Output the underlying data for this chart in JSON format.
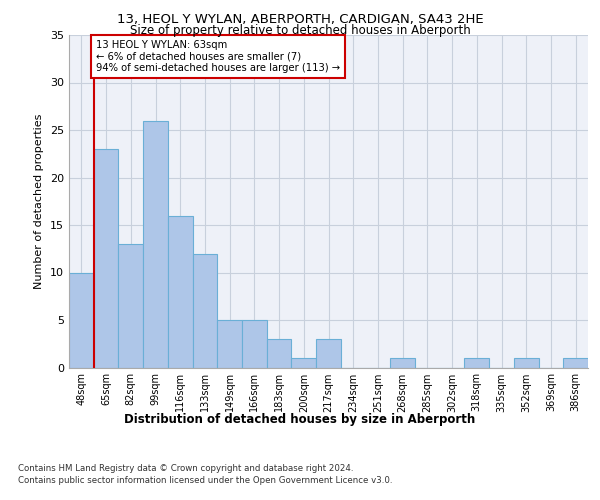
{
  "title1": "13, HEOL Y WYLAN, ABERPORTH, CARDIGAN, SA43 2HE",
  "title2": "Size of property relative to detached houses in Aberporth",
  "xlabel": "Distribution of detached houses by size in Aberporth",
  "ylabel": "Number of detached properties",
  "categories": [
    "48sqm",
    "65sqm",
    "82sqm",
    "99sqm",
    "116sqm",
    "133sqm",
    "149sqm",
    "166sqm",
    "183sqm",
    "200sqm",
    "217sqm",
    "234sqm",
    "251sqm",
    "268sqm",
    "285sqm",
    "302sqm",
    "318sqm",
    "335sqm",
    "352sqm",
    "369sqm",
    "386sqm"
  ],
  "values": [
    10,
    23,
    13,
    26,
    16,
    12,
    5,
    5,
    3,
    1,
    3,
    0,
    0,
    1,
    0,
    0,
    1,
    0,
    1,
    0,
    1
  ],
  "bar_color": "#aec6e8",
  "bar_edge_color": "#6aafd6",
  "annotation_text1": "13 HEOL Y WYLAN: 63sqm",
  "annotation_text2": "← 6% of detached houses are smaller (7)",
  "annotation_text3": "94% of semi-detached houses are larger (113) →",
  "annotation_box_color": "#ffffff",
  "annotation_box_edge_color": "#cc0000",
  "vline_color": "#cc0000",
  "grid_color": "#c8d0dc",
  "background_color": "#eef1f8",
  "footer1": "Contains HM Land Registry data © Crown copyright and database right 2024.",
  "footer2": "Contains public sector information licensed under the Open Government Licence v3.0.",
  "ylim": [
    0,
    35
  ],
  "yticks": [
    0,
    5,
    10,
    15,
    20,
    25,
    30,
    35
  ]
}
